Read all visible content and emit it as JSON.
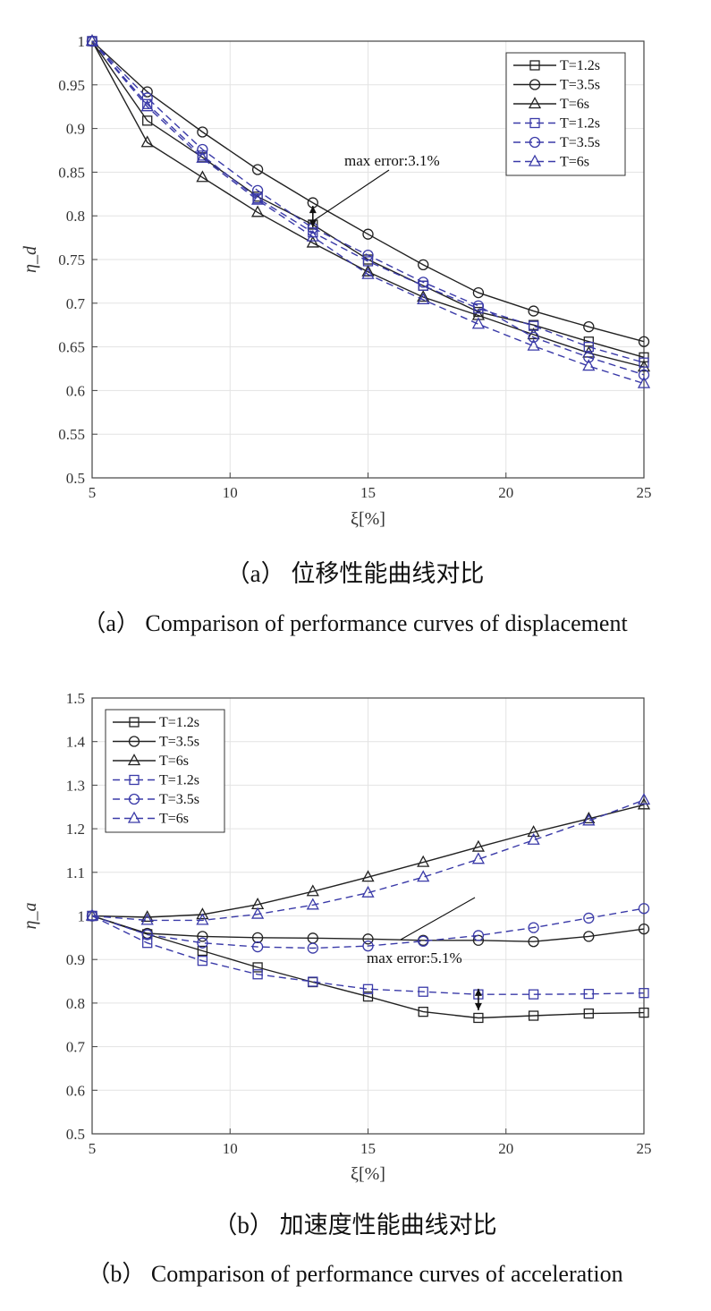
{
  "chart_data": [
    {
      "type": "line",
      "ylabel": "η_d",
      "xlabel": "ξ[%]",
      "xlim": [
        5,
        25
      ],
      "ylim": [
        0.5,
        1
      ],
      "xticks": [
        "5",
        "10",
        "15",
        "20",
        "25"
      ],
      "yticks": [
        "0.5",
        "0.55",
        "0.6",
        "0.65",
        "0.7",
        "0.75",
        "0.8",
        "0.85",
        "0.9",
        "0.95",
        "1"
      ],
      "grid": true,
      "legend_position": "top-right",
      "x": [
        5,
        7,
        9,
        11,
        13,
        15,
        17,
        19,
        21,
        23,
        25
      ],
      "series": [
        {
          "name": "T=1.2s",
          "style": "solid",
          "marker": "square",
          "color": "#222222",
          "values": [
            1.0,
            0.909,
            0.867,
            0.822,
            0.79,
            0.75,
            0.72,
            0.69,
            0.675,
            0.656,
            0.638
          ]
        },
        {
          "name": "T=3.5s",
          "style": "solid",
          "marker": "circle",
          "color": "#222222",
          "values": [
            1.0,
            0.942,
            0.896,
            0.853,
            0.815,
            0.779,
            0.744,
            0.712,
            0.691,
            0.673,
            0.656
          ]
        },
        {
          "name": "T=6s",
          "style": "solid",
          "marker": "triangle",
          "color": "#222222",
          "values": [
            1.0,
            0.884,
            0.844,
            0.804,
            0.769,
            0.736,
            0.707,
            0.686,
            0.664,
            0.643,
            0.627
          ]
        },
        {
          "name": "T=1.2s",
          "style": "dashed",
          "marker": "square",
          "color": "#3a3aa8",
          "values": [
            1.0,
            0.928,
            0.869,
            0.82,
            0.781,
            0.748,
            0.72,
            0.694,
            0.674,
            0.65,
            0.632
          ]
        },
        {
          "name": "T=3.5s",
          "style": "dashed",
          "marker": "circle",
          "color": "#3a3aa8",
          "values": [
            1.0,
            0.935,
            0.876,
            0.829,
            0.786,
            0.755,
            0.724,
            0.697,
            0.661,
            0.638,
            0.618
          ]
        },
        {
          "name": "T=6s",
          "style": "dashed",
          "marker": "triangle",
          "color": "#3a3aa8",
          "values": [
            1.0,
            0.925,
            0.866,
            0.818,
            0.776,
            0.733,
            0.704,
            0.676,
            0.651,
            0.628,
            0.608
          ]
        }
      ],
      "annotation": {
        "text": "max error:3.1%",
        "x": 13,
        "y": 0.795
      }
    },
    {
      "type": "line",
      "ylabel": "η_a",
      "xlabel": "ξ[%]",
      "xlim": [
        5,
        25
      ],
      "ylim": [
        0.5,
        1.5
      ],
      "xticks": [
        "5",
        "10",
        "15",
        "20",
        "25"
      ],
      "yticks": [
        "0.5",
        "0.6",
        "0.7",
        "0.8",
        "0.9",
        "1",
        "1.1",
        "1.2",
        "1.3",
        "1.4",
        "1.5"
      ],
      "grid": true,
      "legend_position": "top-left",
      "x": [
        5,
        7,
        9,
        11,
        13,
        15,
        17,
        19,
        21,
        23,
        25
      ],
      "series": [
        {
          "name": "T=1.2s",
          "style": "solid",
          "marker": "square",
          "color": "#222222",
          "values": [
            1.0,
            0.958,
            0.92,
            0.882,
            0.848,
            0.815,
            0.78,
            0.766,
            0.771,
            0.776,
            0.778
          ]
        },
        {
          "name": "T=3.5s",
          "style": "solid",
          "marker": "circle",
          "color": "#222222",
          "values": [
            1.0,
            0.96,
            0.953,
            0.95,
            0.949,
            0.947,
            0.944,
            0.944,
            0.941,
            0.953,
            0.97
          ]
        },
        {
          "name": "T=6s",
          "style": "solid",
          "marker": "triangle",
          "color": "#222222",
          "values": [
            1.0,
            0.997,
            1.003,
            1.026,
            1.056,
            1.089,
            1.123,
            1.158,
            1.192,
            1.223,
            1.255
          ]
        },
        {
          "name": "T=1.2s",
          "style": "dashed",
          "marker": "square",
          "color": "#3a3aa8",
          "values": [
            1.0,
            0.938,
            0.897,
            0.866,
            0.849,
            0.832,
            0.826,
            0.82,
            0.82,
            0.821,
            0.823
          ]
        },
        {
          "name": "T=3.5s",
          "style": "dashed",
          "marker": "circle",
          "color": "#3a3aa8",
          "values": [
            1.0,
            0.957,
            0.938,
            0.929,
            0.926,
            0.931,
            0.942,
            0.955,
            0.973,
            0.995,
            1.017
          ]
        },
        {
          "name": "T=6s",
          "style": "dashed",
          "marker": "triangle",
          "color": "#3a3aa8",
          "values": [
            1.0,
            0.99,
            0.99,
            1.004,
            1.025,
            1.053,
            1.089,
            1.13,
            1.174,
            1.218,
            1.266
          ]
        }
      ],
      "annotation": {
        "text": "max error:5.1%",
        "x": 19,
        "y": 0.8
      }
    }
  ],
  "captions": {
    "a_zh": "（a） 位移性能曲线对比",
    "a_en": "（a） Comparison of performance curves of displacement",
    "b_zh": "（b） 加速度性能曲线对比",
    "b_en": "（b） Comparison of performance curves of acceleration"
  }
}
